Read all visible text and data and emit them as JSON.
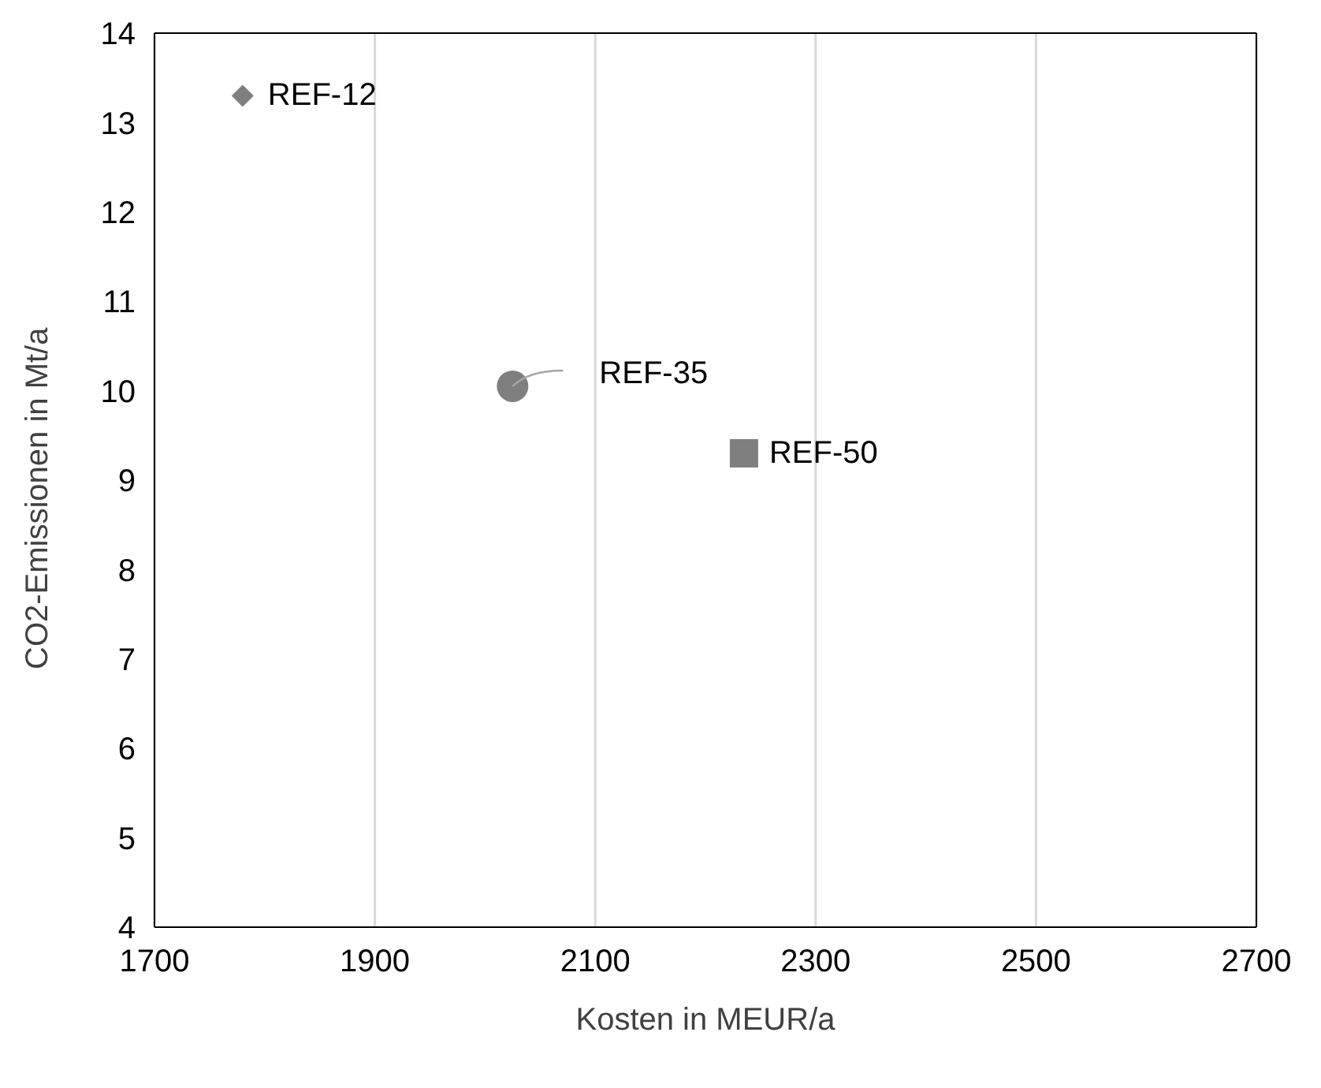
{
  "chart_data": {
    "type": "scatter",
    "xlabel": "Kosten in MEUR/a",
    "ylabel": "CO2-Emissionen in Mt/a",
    "series": [
      {
        "name": "REF-12",
        "color": "#7f7f7f",
        "marker": "diamond",
        "x": [
          1780
        ],
        "values": [
          13.3
        ]
      },
      {
        "name": "REF-35",
        "color": "#7f7f7f",
        "marker": "circle",
        "x": [
          2025
        ],
        "values": [
          10.05
        ]
      },
      {
        "name": "REF-50",
        "color": "#7f7f7f",
        "marker": "square",
        "x": [
          2235
        ],
        "values": [
          9.3
        ]
      }
    ],
    "xlim": [
      1700,
      2700
    ],
    "xticks": [
      1700,
      1900,
      2100,
      2300,
      2500,
      2700
    ],
    "ylim": [
      4,
      14
    ],
    "yticks": [
      4,
      5,
      6,
      7,
      8,
      9,
      10,
      11,
      12,
      13,
      14
    ],
    "grid": "x",
    "legend": false
  }
}
